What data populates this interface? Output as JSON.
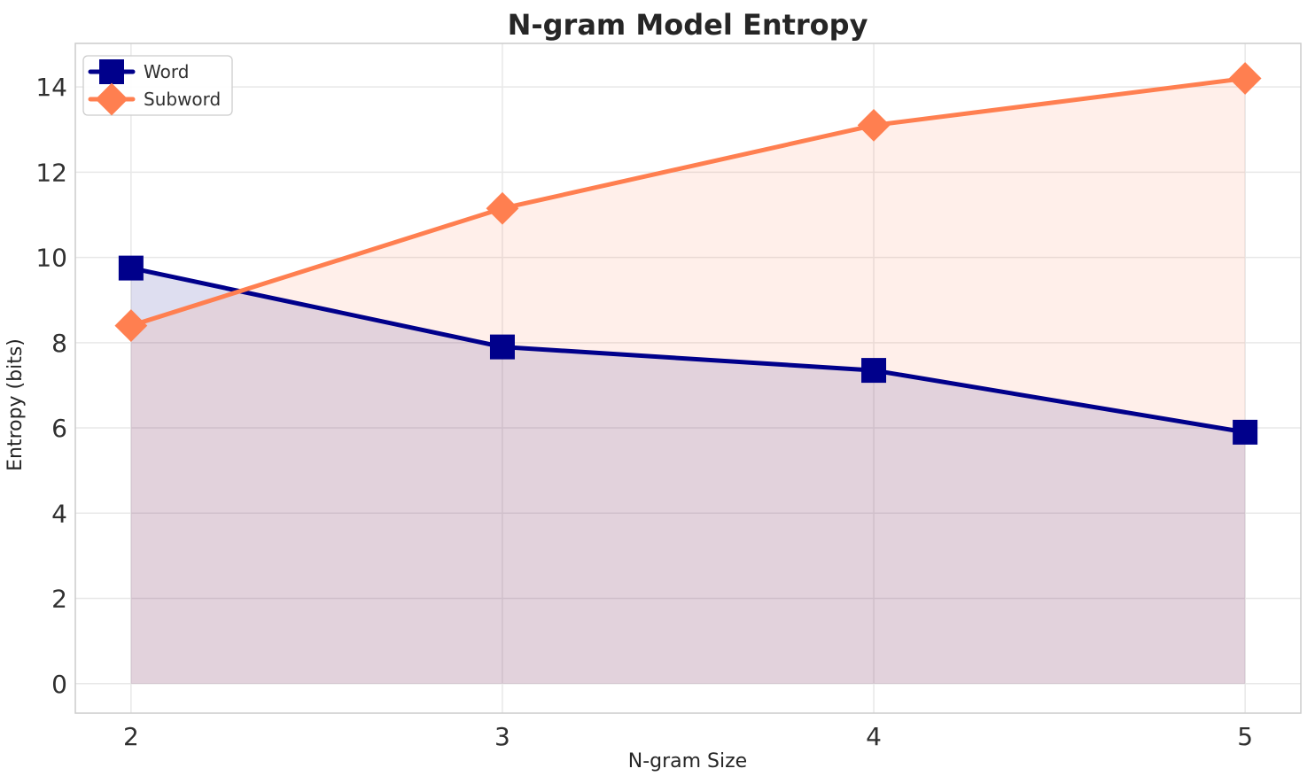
{
  "chart_data": {
    "type": "line",
    "title": "N-gram Model Entropy",
    "xlabel": "N-gram Size",
    "ylabel": "Entropy (bits)",
    "x": [
      2,
      3,
      4,
      5
    ],
    "series": [
      {
        "name": "Word",
        "color": "#00008B",
        "marker": "square",
        "values": [
          9.75,
          7.9,
          7.35,
          5.9
        ],
        "fill_to_zero": true,
        "fill_opacity": 0.13
      },
      {
        "name": "Subword",
        "color": "#FF7F50",
        "marker": "diamond",
        "values": [
          8.4,
          11.15,
          13.1,
          14.2
        ],
        "fill_to_zero": true,
        "fill_opacity": 0.12
      }
    ],
    "xticks": [
      2,
      3,
      4,
      5
    ],
    "yticks": [
      0,
      2,
      4,
      6,
      8,
      10,
      12,
      14
    ],
    "xlim": [
      1.85,
      5.15
    ],
    "ylim": [
      -0.69,
      15.02
    ],
    "grid": true,
    "legend_position": "upper left",
    "colors": {
      "grid": "#E8E8E8",
      "spine": "#CCCCCC",
      "text": "#262626",
      "legend_border": "#CCCCCC",
      "legend_bg": "#FFFFFF",
      "background": "#FFFFFF"
    }
  }
}
